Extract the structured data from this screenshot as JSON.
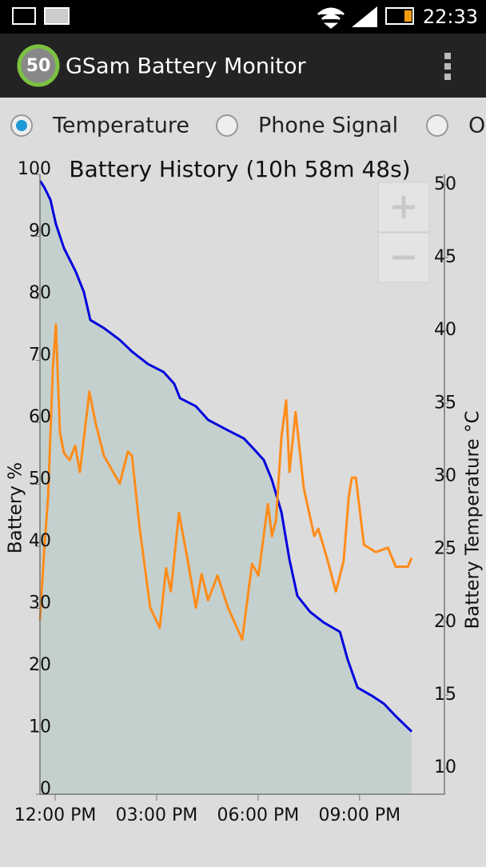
{
  "status_bar": {
    "time": "22:33"
  },
  "app_bar": {
    "badge": "50",
    "title": "GSam Battery Monitor"
  },
  "options": [
    "Temperature",
    "Phone Signal",
    "O"
  ],
  "chart_data": {
    "type": "line",
    "title": "Battery History (10h 58m 48s)",
    "y_label": "Battery %",
    "y2_label": "Battery Temperature °C",
    "xlim": [
      11.55,
      23.51
    ],
    "xticks": [
      {
        "value": 12,
        "label": "12:00 PM"
      },
      {
        "value": 15,
        "label": "03:00 PM"
      },
      {
        "value": 18,
        "label": "06:00 PM"
      },
      {
        "value": 21,
        "label": "09:00 PM"
      }
    ],
    "ylim": [
      0,
      100
    ],
    "yticks": [
      0,
      10,
      20,
      30,
      40,
      50,
      60,
      70,
      80,
      90,
      100
    ],
    "y2lim": [
      8.2,
      50.7
    ],
    "y2ticks": [
      10,
      15,
      20,
      25,
      30,
      35,
      40,
      45,
      50
    ],
    "series": [
      {
        "name": "Battery",
        "color": "#0000dd",
        "fill": "#c4d0ce",
        "axis": "y",
        "x": [
          11.55,
          11.69,
          11.86,
          12.02,
          12.26,
          12.61,
          12.85,
          13.04,
          13.44,
          13.91,
          14.27,
          14.74,
          15.21,
          15.52,
          15.69,
          16.16,
          16.52,
          17.11,
          17.58,
          17.89,
          18.17,
          18.41,
          18.69,
          18.93,
          19.16,
          19.54,
          19.94,
          20.42,
          20.65,
          20.94,
          21.36,
          21.72,
          22.07,
          22.54
        ],
        "values": [
          99,
          97.8,
          95.9,
          92,
          88.1,
          84.3,
          81,
          76.5,
          75.2,
          73.3,
          71.4,
          69.4,
          68.1,
          66.2,
          63.9,
          62.6,
          60.4,
          58.7,
          57.4,
          55.6,
          53.9,
          50.7,
          45.5,
          37.8,
          32,
          29.4,
          27.7,
          26.2,
          21.7,
          17.2,
          15.9,
          14.6,
          12.6,
          10.1
        ]
      },
      {
        "name": "Temperature",
        "color": "#ff8c1a",
        "axis": "y2",
        "x": [
          11.55,
          11.67,
          11.79,
          11.93,
          12.02,
          12.14,
          12.26,
          12.43,
          12.59,
          12.73,
          12.87,
          13.01,
          13.2,
          13.44,
          13.91,
          14.15,
          14.27,
          14.5,
          14.81,
          15.09,
          15.28,
          15.42,
          15.66,
          15.92,
          16.16,
          16.33,
          16.52,
          16.8,
          17.11,
          17.53,
          17.82,
          18.01,
          18.29,
          18.41,
          18.53,
          18.69,
          18.83,
          18.93,
          19.11,
          19.35,
          19.66,
          19.78,
          20.06,
          20.3,
          20.53,
          20.68,
          20.77,
          20.89,
          21.13,
          21.48,
          21.84,
          22.07,
          22.43,
          22.54
        ],
        "values": [
          20.1,
          24.8,
          28.6,
          37.4,
          40.4,
          33,
          31.6,
          31.1,
          32.1,
          30.3,
          33,
          35.8,
          33.6,
          31.4,
          29.5,
          31.7,
          31.4,
          26.4,
          21,
          19.6,
          23.7,
          22.1,
          27.5,
          24.2,
          21,
          23.3,
          21.5,
          23.2,
          21,
          18.8,
          24,
          23.2,
          28.1,
          25.9,
          27,
          32.7,
          35.2,
          30.3,
          34.4,
          29.2,
          25.9,
          26.4,
          24.2,
          22.1,
          24.2,
          28.6,
          29.9,
          29.9,
          25.3,
          24.8,
          25.1,
          23.8,
          23.8,
          24.4
        ]
      }
    ]
  }
}
